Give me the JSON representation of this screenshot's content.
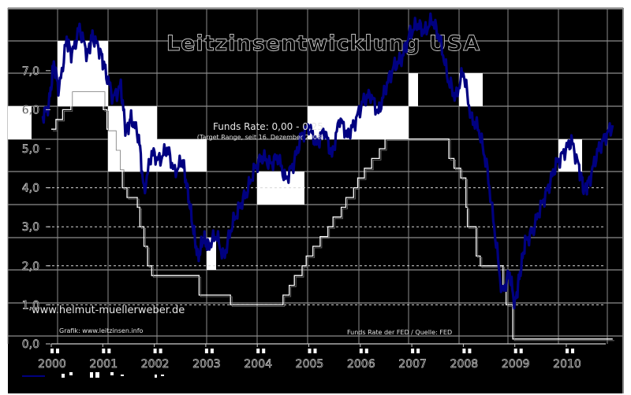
{
  "chart_data": {
    "type": "line",
    "title": "Leitzinsentwicklung USA",
    "xlabel": "",
    "ylabel": "",
    "ylim": [
      0,
      8.5
    ],
    "xlim": [
      2000,
      2011.0
    ],
    "grid": true,
    "y_ticks": [
      "0,0",
      "1,0",
      "2,0",
      "3,0",
      "4,0",
      "5,0",
      "6,0",
      "7,0"
    ],
    "x_ticks": [
      "2000",
      "2001",
      "2002",
      "2003",
      "2004",
      "2005",
      "2006",
      "2007",
      "2008",
      "2009",
      "2010"
    ],
    "annotations": [
      "Funds Rate: 0,00 - 0,25",
      "(Target Range, seit 16. Dezember 2008)",
      "www.helmut-muellerweber.de",
      "Grafik: www.leitzinsen.info",
      "Funds Rate der FED / Quelle: FED"
    ],
    "series": [
      {
        "name": "Fed Funds Rate",
        "style": "step",
        "color": "#ffffff",
        "x": [
          2000.0,
          2000.09,
          2000.22,
          2000.38,
          2001.01,
          2001.08,
          2001.23,
          2001.31,
          2001.38,
          2001.47,
          2001.67,
          2001.72,
          2001.8,
          2001.87,
          2001.95,
          2002.87,
          2003.48,
          2004.5,
          2004.62,
          2004.72,
          2004.87,
          2004.95,
          2005.08,
          2005.22,
          2005.37,
          2005.47,
          2005.63,
          2005.72,
          2005.87,
          2005.95,
          2006.08,
          2006.22,
          2006.37,
          2006.48,
          2007.72,
          2007.82,
          2007.95,
          2008.05,
          2008.08,
          2008.25,
          2008.33,
          2008.77,
          2008.83,
          2008.96,
          2010.9
        ],
        "values": [
          5.5,
          5.75,
          6.0,
          6.5,
          6.0,
          5.5,
          5.0,
          4.5,
          4.0,
          3.75,
          3.5,
          3.0,
          2.5,
          2.0,
          1.75,
          1.25,
          1.0,
          1.25,
          1.5,
          1.75,
          2.0,
          2.25,
          2.5,
          2.75,
          3.0,
          3.25,
          3.5,
          3.75,
          4.0,
          4.25,
          4.5,
          4.75,
          5.0,
          5.25,
          4.75,
          4.5,
          4.25,
          3.5,
          3.0,
          2.25,
          2.0,
          1.5,
          1.0,
          0.125,
          0.125
        ]
      },
      {
        "name": "Dow Jones (relative, overlay)",
        "style": "line",
        "color": "#000080",
        "x": [
          1999.82,
          1999.95,
          2000.05,
          2000.15,
          2000.3,
          2000.4,
          2000.55,
          2000.7,
          2000.8,
          2000.95,
          2001.05,
          2001.2,
          2001.35,
          2001.45,
          2001.55,
          2001.7,
          2001.8,
          2001.95,
          2002.1,
          2002.25,
          2002.4,
          2002.55,
          2002.65,
          2002.75,
          2002.85,
          2002.95,
          2003.05,
          2003.2,
          2003.35,
          2003.5,
          2003.65,
          2003.8,
          2003.95,
          2004.1,
          2004.25,
          2004.4,
          2004.55,
          2004.7,
          2004.85,
          2005.0,
          2005.15,
          2005.3,
          2005.45,
          2005.6,
          2005.75,
          2005.9,
          2006.05,
          2006.2,
          2006.35,
          2006.5,
          2006.65,
          2006.8,
          2006.95,
          2007.1,
          2007.25,
          2007.4,
          2007.55,
          2007.7,
          2007.85,
          2008.0,
          2008.15,
          2008.3,
          2008.45,
          2008.6,
          2008.75,
          2008.9,
          2009.0,
          2009.1,
          2009.2,
          2009.35,
          2009.5,
          2009.65,
          2009.8,
          2009.95,
          2010.1,
          2010.25,
          2010.35,
          2010.45,
          2010.6,
          2010.75,
          2010.9
        ],
        "values": [
          5.8,
          6.1,
          7.2,
          6.5,
          7.8,
          7.4,
          8.1,
          7.4,
          7.9,
          7.5,
          7.0,
          6.3,
          6.6,
          5.4,
          5.8,
          5.3,
          3.9,
          4.9,
          4.7,
          5.0,
          4.4,
          4.7,
          3.9,
          3.0,
          2.2,
          2.7,
          2.5,
          2.8,
          2.2,
          3.0,
          3.5,
          3.9,
          4.5,
          4.8,
          4.6,
          4.8,
          4.2,
          4.6,
          5.3,
          5.6,
          5.1,
          5.5,
          4.8,
          5.8,
          5.3,
          5.7,
          6.2,
          6.4,
          5.9,
          6.6,
          7.1,
          7.3,
          7.9,
          8.2,
          8.0,
          8.3,
          7.8,
          6.8,
          6.3,
          7.0,
          5.8,
          5.5,
          4.6,
          3.0,
          1.3,
          1.8,
          1.0,
          1.8,
          2.6,
          2.9,
          3.5,
          4.0,
          4.6,
          4.9,
          5.2,
          4.5,
          3.9,
          4.2,
          4.9,
          5.3,
          5.6
        ]
      }
    ]
  },
  "chart": {
    "title": "Leitzinsentwicklung USA",
    "current_rate_label": "Funds Rate: 0,00 - 0,25",
    "current_rate_sub": "(Target Range, seit 16. Dezember 2008)",
    "watermark": "www.helmut-muellerweber.de",
    "credit": "Grafik: www.leitzinsen.info",
    "source": "Funds Rate der FED / Quelle: FED",
    "y_labels": [
      "0,0",
      "1,0",
      "2,0",
      "3,0",
      "4,0",
      "5,0",
      "6,0",
      "7,0"
    ],
    "x_labels": [
      "2000",
      "2001",
      "2002",
      "2003",
      "2004",
      "2005",
      "2006",
      "2007",
      "2008",
      "2009",
      "2010"
    ],
    "colors": {
      "background": "#000000",
      "grid": "#8c8c8c",
      "dow_line": "#000080",
      "fed_line": "#ffffff",
      "page": "#ffffff"
    }
  }
}
